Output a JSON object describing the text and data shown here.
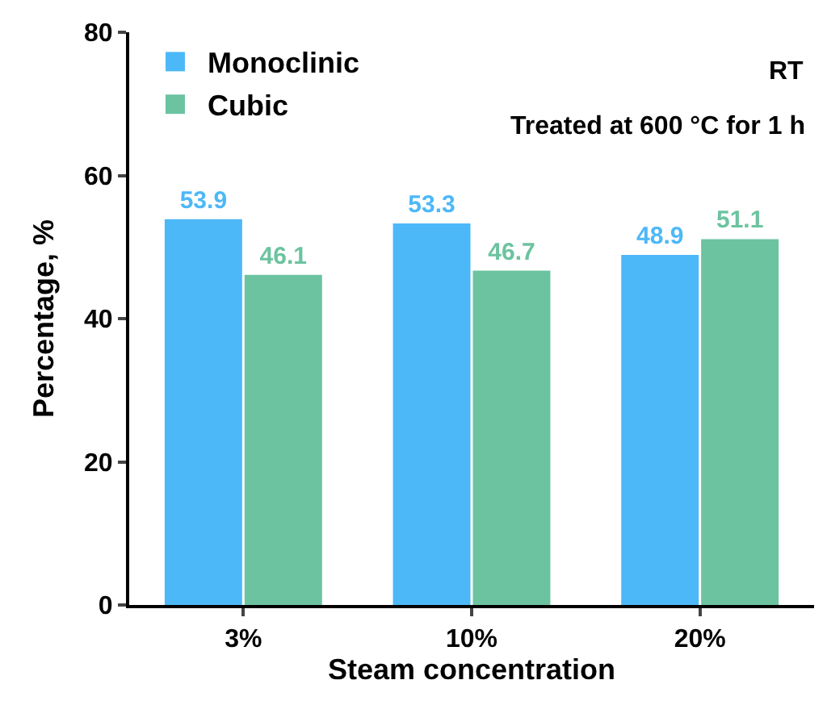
{
  "chart_data": {
    "type": "bar",
    "xlabel": "Steam concentration",
    "ylabel": "Percentage, %",
    "categories": [
      "3%",
      "10%",
      "20%"
    ],
    "series": [
      {
        "name": "Monoclinic",
        "color": "#4db8f8",
        "values": [
          53.9,
          53.3,
          48.9
        ]
      },
      {
        "name": "Cubic",
        "color": "#6cc3a0",
        "values": [
          46.1,
          46.7,
          51.1
        ]
      }
    ],
    "ylim": [
      0,
      80
    ],
    "yticks": [
      0,
      20,
      40,
      60,
      80
    ],
    "grid": false,
    "legend": "top left",
    "data_labels": true,
    "annotations": [
      "RT",
      "Treated at 600 °C for 1 h"
    ]
  }
}
